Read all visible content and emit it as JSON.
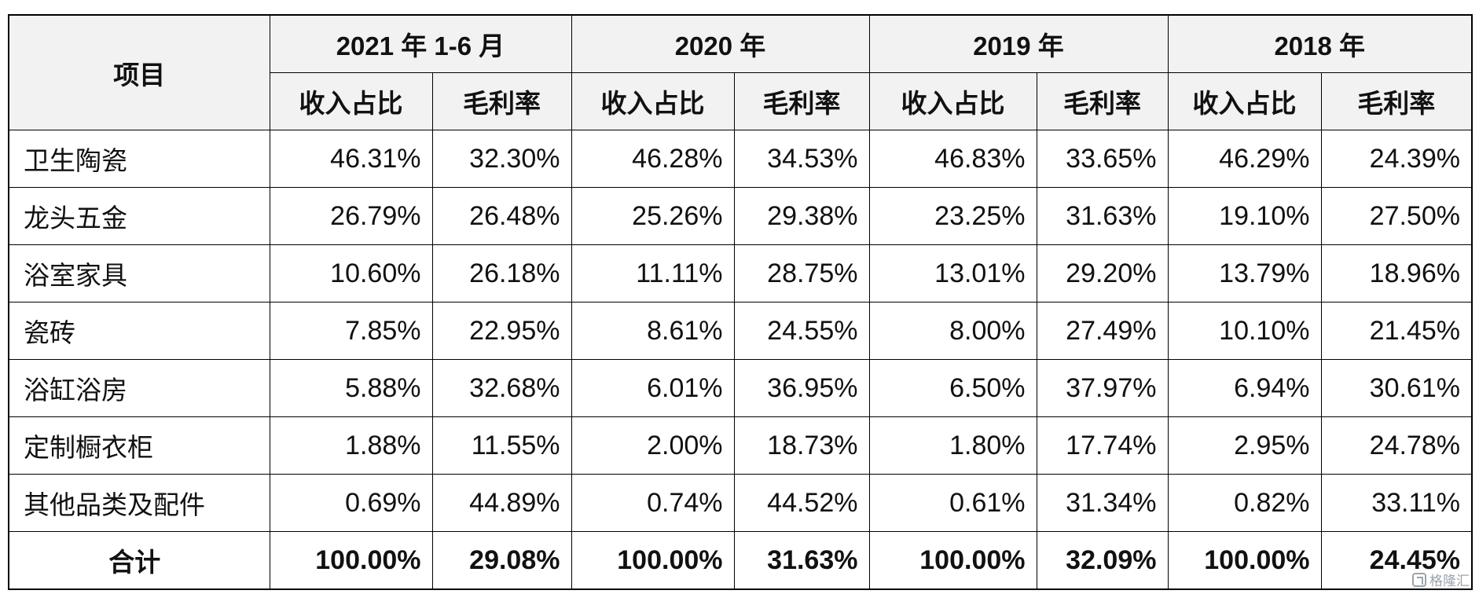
{
  "table": {
    "item_header": "项目",
    "periods": [
      "2021 年 1-6 月",
      "2020 年",
      "2019 年",
      "2018 年"
    ],
    "subheaders": [
      "收入占比",
      "毛利率"
    ],
    "rows": [
      {
        "label": "卫生陶瓷",
        "values": [
          "46.31%",
          "32.30%",
          "46.28%",
          "34.53%",
          "46.83%",
          "33.65%",
          "46.29%",
          "24.39%"
        ]
      },
      {
        "label": "龙头五金",
        "values": [
          "26.79%",
          "26.48%",
          "25.26%",
          "29.38%",
          "23.25%",
          "31.63%",
          "19.10%",
          "27.50%"
        ]
      },
      {
        "label": "浴室家具",
        "values": [
          "10.60%",
          "26.18%",
          "11.11%",
          "28.75%",
          "13.01%",
          "29.20%",
          "13.79%",
          "18.96%"
        ]
      },
      {
        "label": "瓷砖",
        "values": [
          "7.85%",
          "22.95%",
          "8.61%",
          "24.55%",
          "8.00%",
          "27.49%",
          "10.10%",
          "21.45%"
        ]
      },
      {
        "label": "浴缸浴房",
        "values": [
          "5.88%",
          "32.68%",
          "6.01%",
          "36.95%",
          "6.50%",
          "37.97%",
          "6.94%",
          "30.61%"
        ]
      },
      {
        "label": "定制橱衣柜",
        "values": [
          "1.88%",
          "11.55%",
          "2.00%",
          "18.73%",
          "1.80%",
          "17.74%",
          "2.95%",
          "24.78%"
        ]
      },
      {
        "label": "其他品类及配件",
        "values": [
          "0.69%",
          "44.89%",
          "0.74%",
          "44.52%",
          "0.61%",
          "31.34%",
          "0.82%",
          "33.11%"
        ]
      }
    ],
    "total": {
      "label": "合计",
      "values": [
        "100.00%",
        "29.08%",
        "100.00%",
        "31.63%",
        "100.00%",
        "32.09%",
        "100.00%",
        "24.45%"
      ]
    }
  },
  "watermark": {
    "icon": "watermark-logo-icon",
    "text": "格隆汇"
  }
}
